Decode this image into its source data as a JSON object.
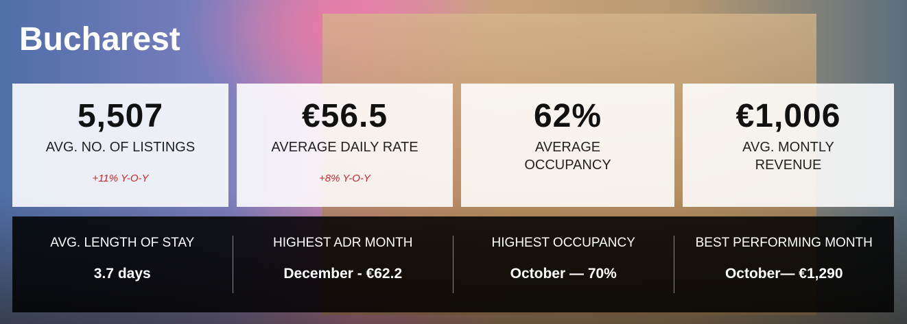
{
  "header": {
    "title": "Bucharest"
  },
  "cards": [
    {
      "value": "5,507",
      "label": "AVG. NO. OF LISTINGS",
      "change": "+11% Y-O-Y"
    },
    {
      "value": "€56.5",
      "label": "AVERAGE DAILY RATE",
      "change": "+8% Y-O-Y"
    },
    {
      "value": "62%",
      "label": "AVERAGE OCCUPANCY"
    },
    {
      "value": "€1,006",
      "label": "AVG. MONTLY REVENUE"
    }
  ],
  "stats": [
    {
      "label": "AVG. LENGTH OF STAY",
      "value": "3.7 days"
    },
    {
      "label": "HIGHEST ADR MONTH",
      "value": "December - €62.2"
    },
    {
      "label": "HIGHEST OCCUPANCY",
      "value": "October — 70%"
    },
    {
      "label": "BEST PERFORMING MONTH",
      "value": "October— €1,290"
    }
  ]
}
